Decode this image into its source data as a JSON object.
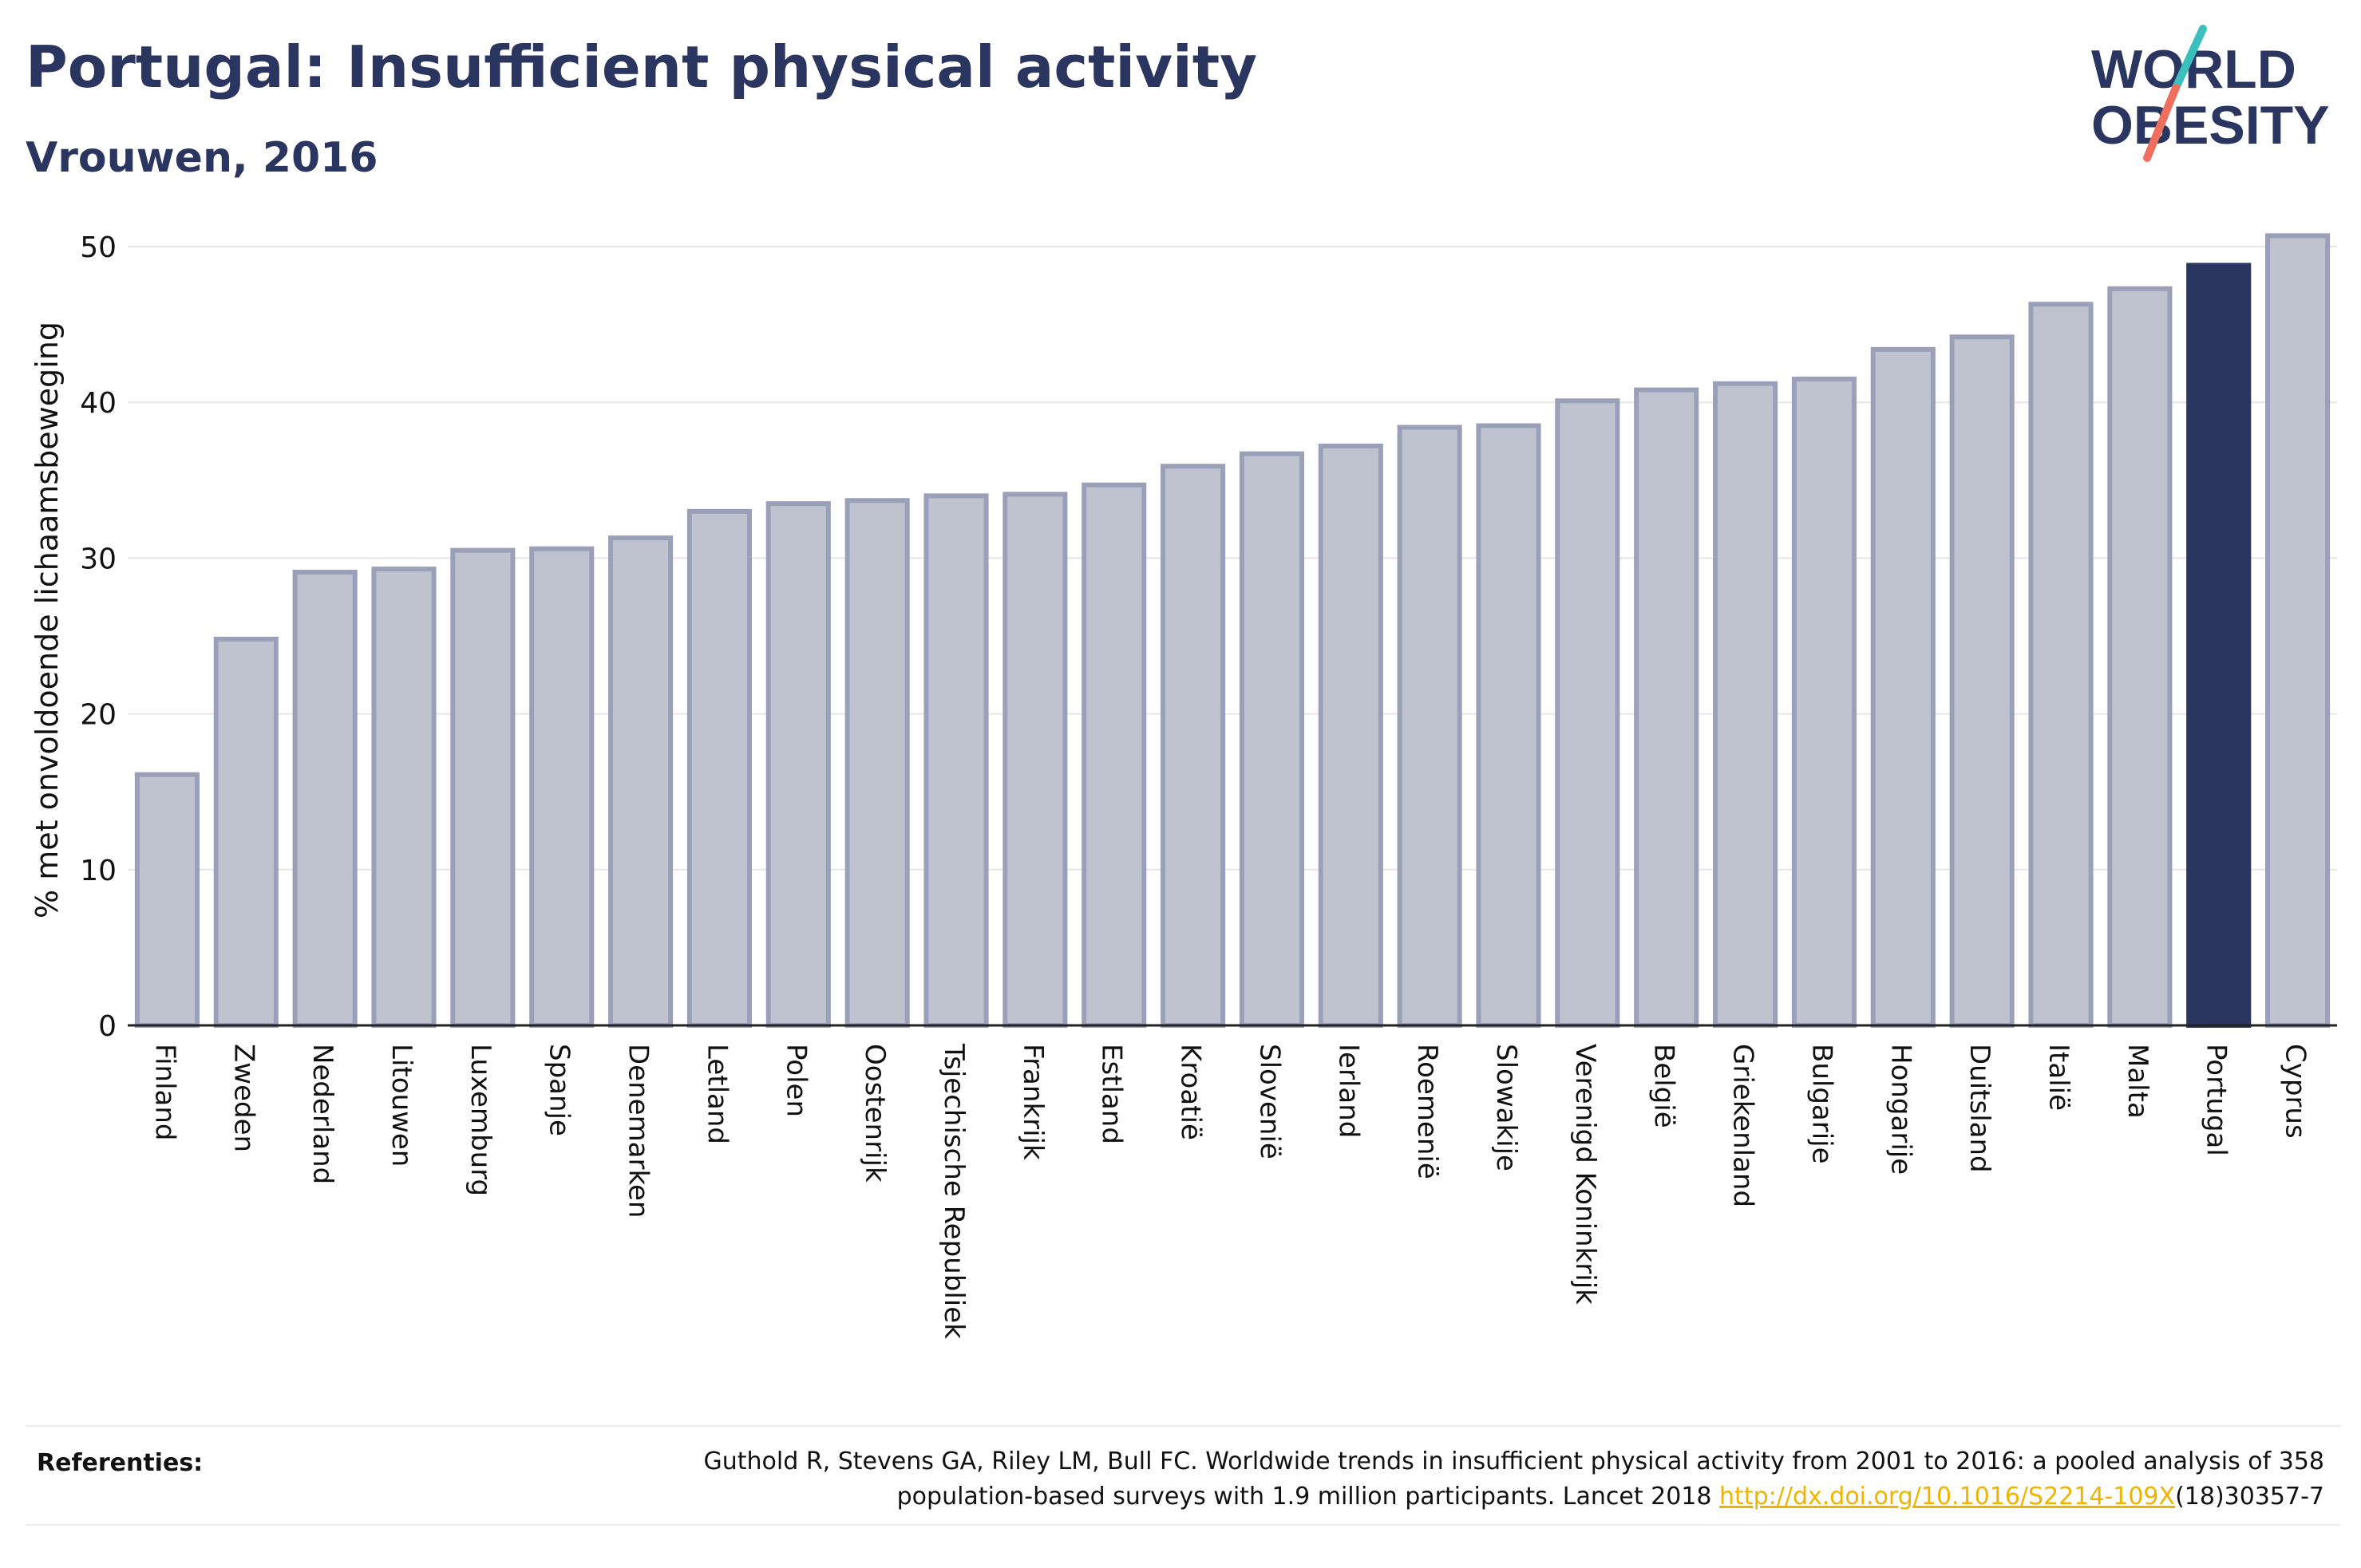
{
  "header": {
    "title": "Portugal: Insufficient physical activity",
    "subtitle": "Vrouwen, 2016"
  },
  "logo": {
    "line1": "WORLD",
    "line2": "OBESITY"
  },
  "colors": {
    "highlight": "#2a3560",
    "bar": "#bfc3d0",
    "bar_border": "#9aa0b8",
    "link": "#f0b400",
    "logo_teal": "#3bbfbd",
    "logo_coral": "#ef6f5e"
  },
  "chart_data": {
    "type": "bar",
    "ylabel": "% met onvoldoende lichaamsbeweging",
    "xlabel": "",
    "ylim": [
      0,
      52
    ],
    "yticks": [
      0,
      10,
      20,
      30,
      40,
      50
    ],
    "grid": true,
    "highlight": "Portugal",
    "categories": [
      "Finland",
      "Zweden",
      "Nederland",
      "Litouwen",
      "Luxemburg",
      "Spanje",
      "Denemarken",
      "Letland",
      "Polen",
      "Oostenrijk",
      "Tsjechische Republiek",
      "Frankrijk",
      "Estland",
      "Kroatië",
      "Slovenië",
      "Ierland",
      "Roemenië",
      "Slowakije",
      "Verenigd Koninkrijk",
      "België",
      "Griekenland",
      "Bulgarije",
      "Hongarije",
      "Duitsland",
      "Italië",
      "Malta",
      "Portugal",
      "Cyprus"
    ],
    "values": [
      16.1,
      24.8,
      29.1,
      29.3,
      30.5,
      30.6,
      31.3,
      33.0,
      33.5,
      33.7,
      34.0,
      34.1,
      34.7,
      35.9,
      36.7,
      37.2,
      38.4,
      38.5,
      40.1,
      40.8,
      41.2,
      41.5,
      43.4,
      44.2,
      46.3,
      47.3,
      48.8,
      50.7
    ]
  },
  "footer": {
    "references_label": "Referenties:",
    "reference_text": "Guthold R, Stevens GA, Riley LM, Bull FC. Worldwide trends in insufficient physical activity from 2001 to 2016: a pooled analysis of 358 population-based surveys with 1.9 million participants. Lancet 2018 ",
    "reference_link": "http://dx.doi.org/10.1016/S2214-109X",
    "reference_suffix": "(18)30357-7"
  }
}
